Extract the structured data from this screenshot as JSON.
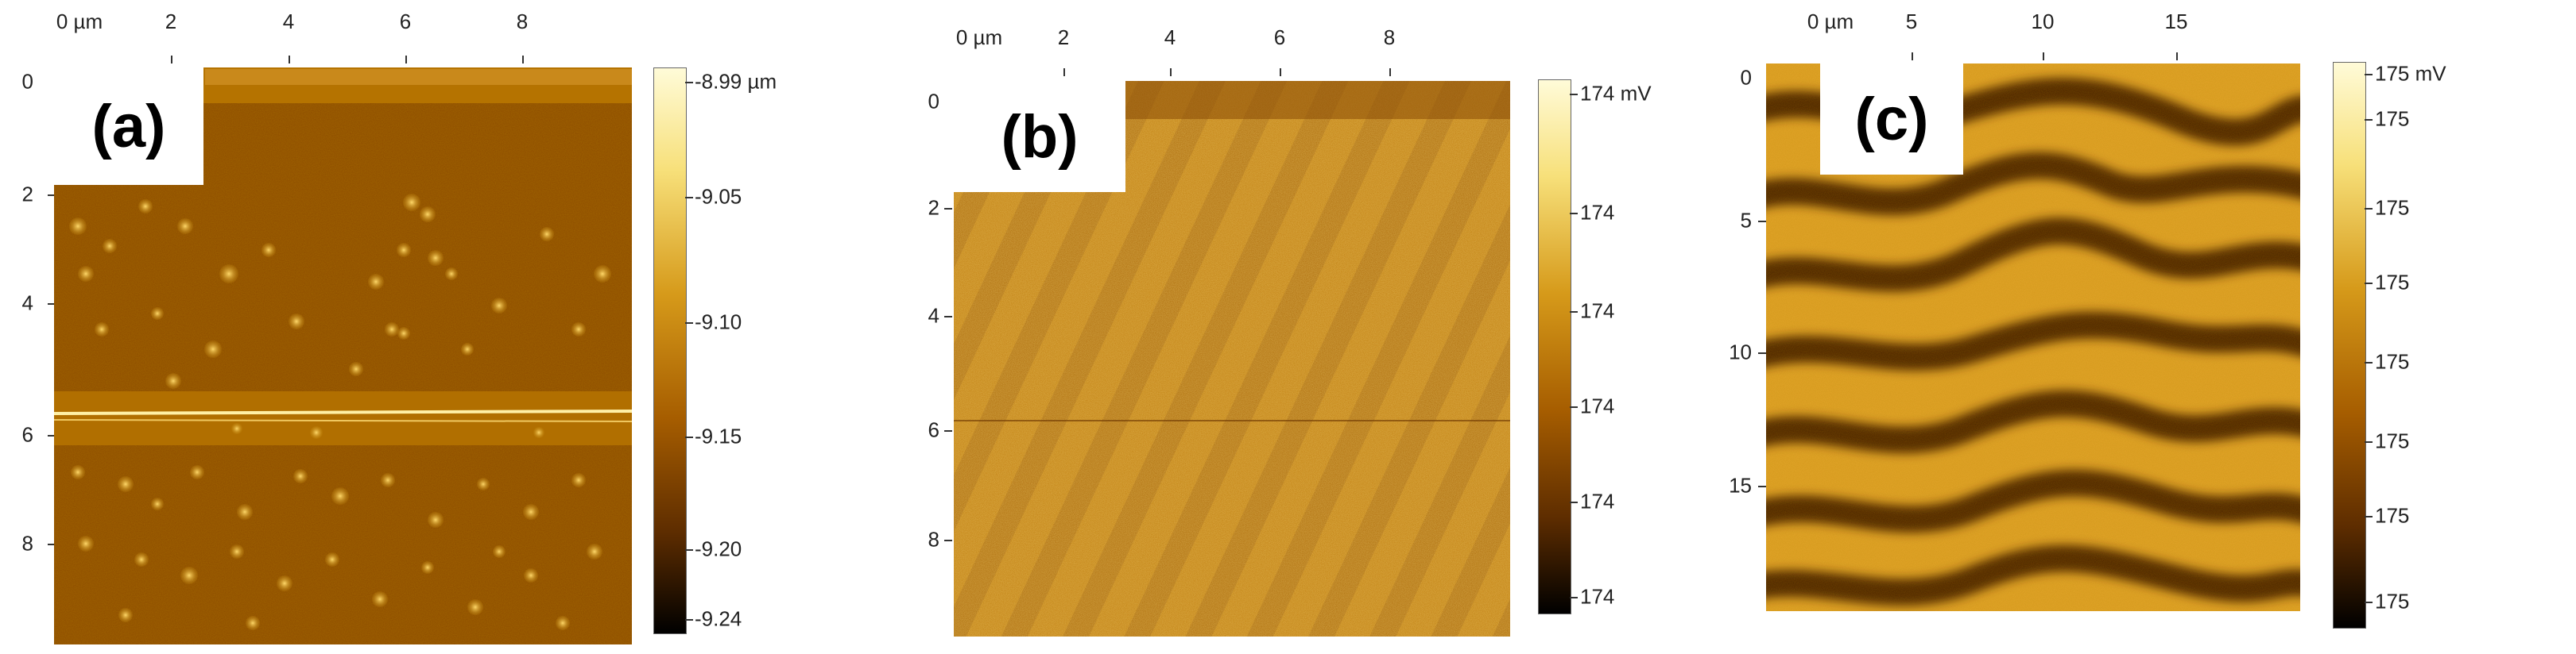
{
  "panels": {
    "a": {
      "label": "(a)",
      "x_ticks": [
        "0 µm",
        "2",
        "4",
        "6",
        "8"
      ],
      "y_ticks": [
        "0",
        "2",
        "4",
        "6",
        "8"
      ],
      "colorbar_ticks": [
        "-8.99 µm",
        "-9.05",
        "-9.10",
        "-9.15",
        "-9.20",
        "-9.24"
      ]
    },
    "b": {
      "label": "(b)",
      "x_ticks": [
        "0 µm",
        "2",
        "4",
        "6",
        "8"
      ],
      "y_ticks": [
        "0",
        "2",
        "4",
        "6",
        "8"
      ],
      "colorbar_ticks": [
        "174 mV",
        "174",
        "174",
        "174",
        "174",
        "174"
      ]
    },
    "c": {
      "label": "(c)",
      "x_ticks": [
        "0 µm",
        "5",
        "10",
        "15"
      ],
      "y_ticks": [
        "0",
        "5",
        "10",
        "15"
      ],
      "colorbar_ticks": [
        "175 mV",
        "175",
        "175",
        "175",
        "175",
        "175",
        "175",
        "175"
      ]
    }
  },
  "colors": {
    "scan_dark": "#7a4200",
    "scan_mid": "#b86f00",
    "scan_light": "#f5d66a",
    "colorbar_top": "#fffbd8",
    "colorbar_bottom": "#000000"
  }
}
